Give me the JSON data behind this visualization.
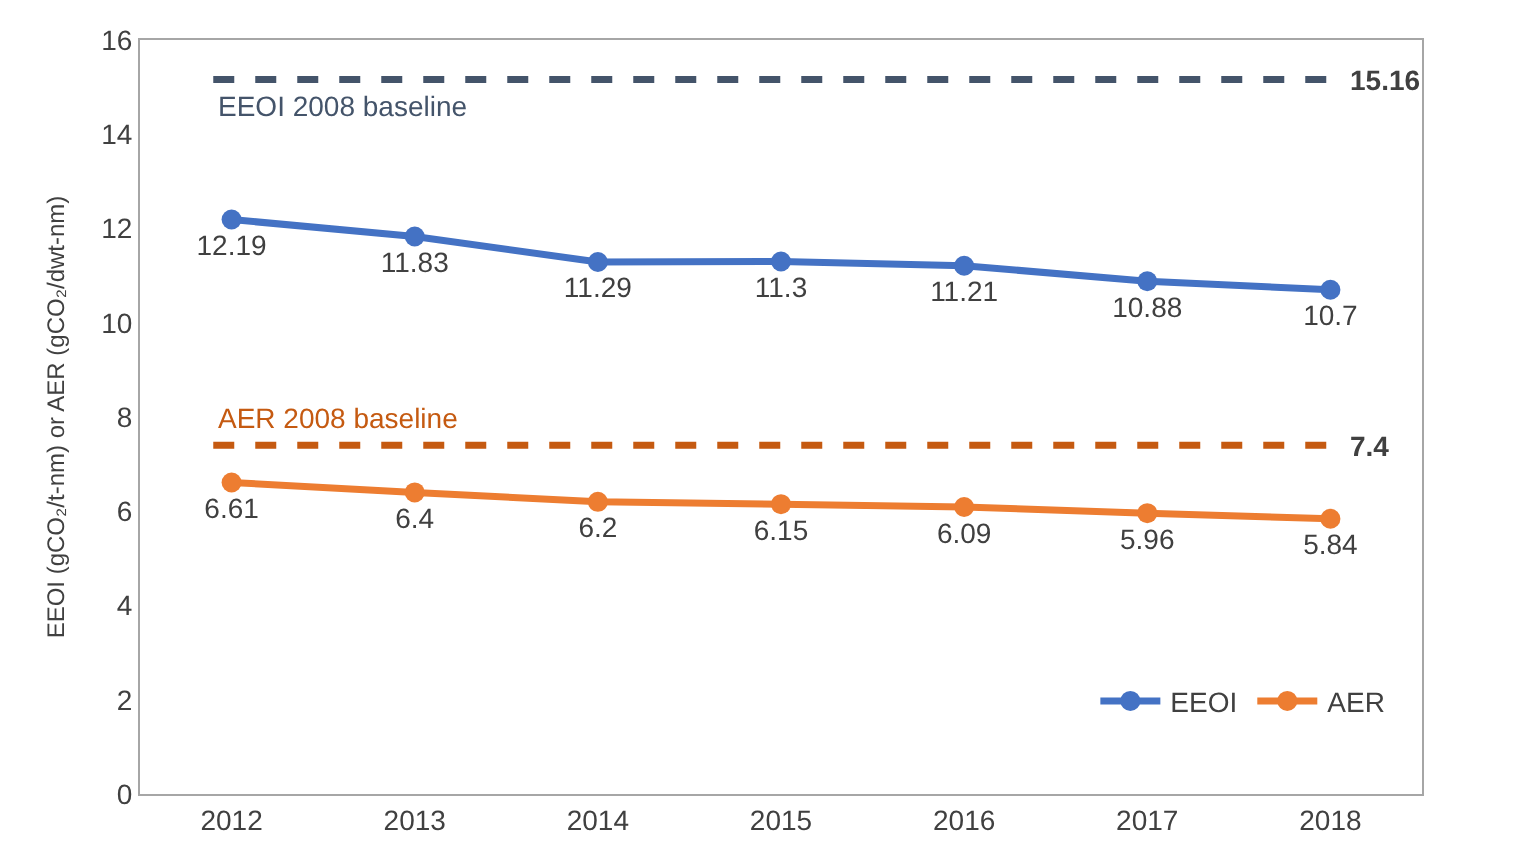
{
  "chart_data": {
    "type": "line",
    "ylabel": "EEOI (gCO₂/t-nm) or AER (gCO₂/dwt-nm)",
    "categories": [
      "2012",
      "2013",
      "2014",
      "2015",
      "2016",
      "2017",
      "2018"
    ],
    "series": [
      {
        "name": "EEOI",
        "color": "#4472c4",
        "values": [
          12.19,
          11.83,
          11.29,
          11.3,
          11.21,
          10.88,
          10.7
        ]
      },
      {
        "name": "AER",
        "color": "#ed7d31",
        "values": [
          6.61,
          6.4,
          6.2,
          6.15,
          6.09,
          5.96,
          5.84
        ]
      }
    ],
    "ylim": [
      0,
      16
    ],
    "yticks": [
      0,
      2,
      4,
      6,
      8,
      10,
      12,
      14,
      16
    ],
    "ref_lines": [
      {
        "axis": "y",
        "value": 15.16,
        "label": "EEOI 2008 baseline",
        "color": "#44546a",
        "line_style": "dashed"
      },
      {
        "axis": "y",
        "value": 7.4,
        "label": "AER 2008 baseline",
        "color": "#c55a11",
        "line_style": "dashed"
      }
    ],
    "annotations": [
      {
        "text": "15.16",
        "x": "2018",
        "y": 15.16
      },
      {
        "text": "7.4",
        "x": "2018",
        "y": 7.4
      }
    ],
    "data_labels": true,
    "legend": "bottom right",
    "marker": "circle",
    "line_style": "solid"
  }
}
